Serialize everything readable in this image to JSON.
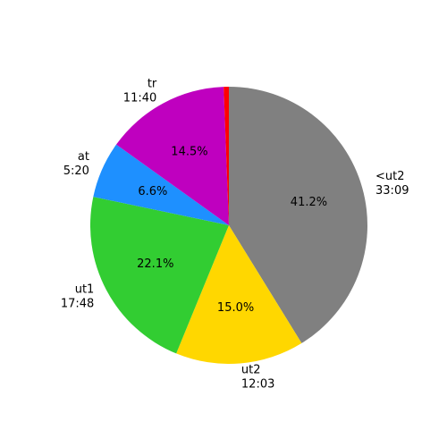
{
  "chart_data": {
    "type": "pie",
    "categories": [
      "<ut2",
      "ut2",
      "ut1",
      "at",
      "tr",
      null
    ],
    "times": [
      "33:09",
      "12:03",
      "17:48",
      "5:20",
      "11:40",
      null
    ],
    "values": [
      41.2,
      15.0,
      22.1,
      6.6,
      14.5,
      0.6
    ],
    "value_labels": [
      "41.2%",
      "15.0%",
      "22.1%",
      "6.6%",
      "14.5%",
      null
    ],
    "colors": [
      "#808080",
      "#ffd700",
      "#32cd32",
      "#1e90ff",
      "#bf00bf",
      "#ff0000"
    ],
    "start_angle": 90,
    "direction": "clockwise"
  }
}
